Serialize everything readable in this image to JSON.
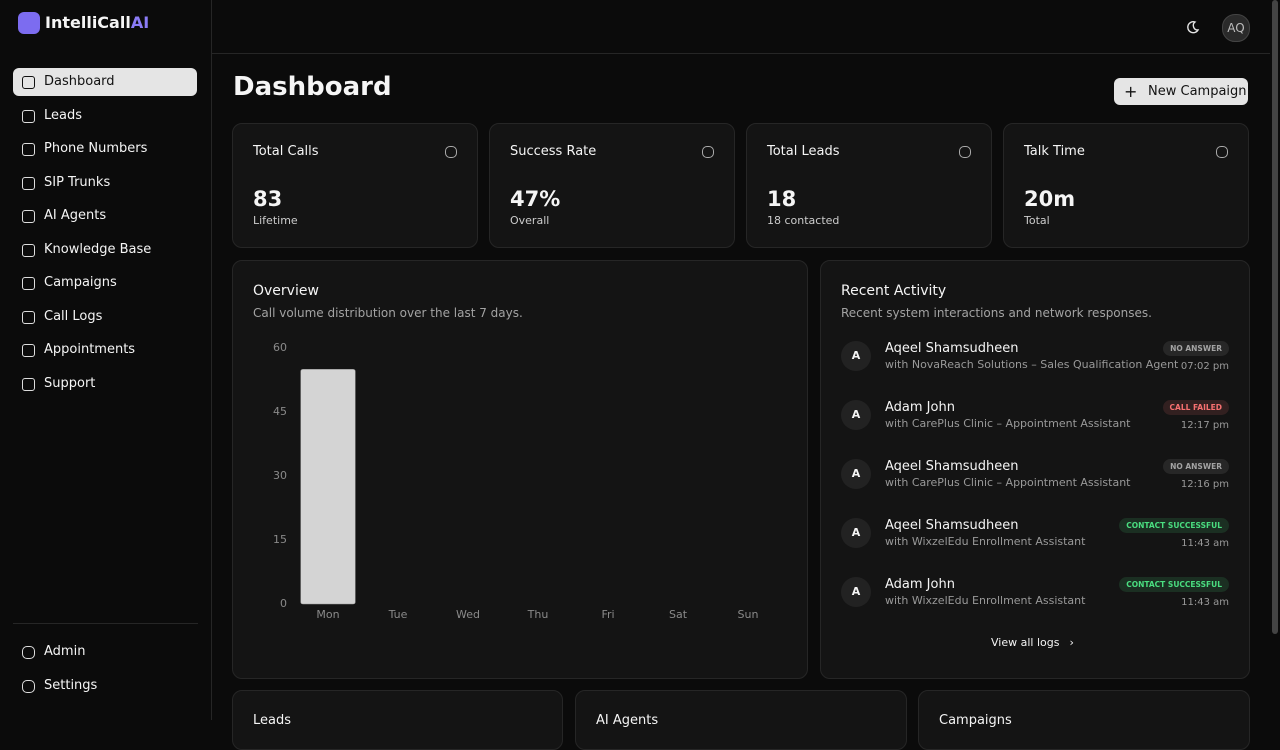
{
  "brand": {
    "name": "IntelliCall",
    "suffix": "AI"
  },
  "header": {
    "avatar": "AQ"
  },
  "nav": {
    "items": [
      "Dashboard",
      "Leads",
      "Phone Numbers",
      "SIP Trunks",
      "AI Agents",
      "Knowledge Base",
      "Campaigns",
      "Call Logs",
      "Appointments",
      "Support"
    ],
    "bottom": [
      "Admin",
      "Settings"
    ]
  },
  "page": {
    "title": "Dashboard",
    "action": "New Campaign"
  },
  "stats": [
    {
      "label": "Total Calls",
      "value": "83",
      "note": "Lifetime"
    },
    {
      "label": "Success Rate",
      "value": "47%",
      "note": "Overall"
    },
    {
      "label": "Total Leads",
      "value": "18",
      "note": "18 contacted"
    },
    {
      "label": "Talk Time",
      "value": "20m",
      "note": "Total"
    }
  ],
  "chart_data": {
    "type": "bar",
    "title": "Overview",
    "subtitle": "Call volume distribution over the last 7 days.",
    "categories": [
      "Mon",
      "Tue",
      "Wed",
      "Thu",
      "Fri",
      "Sat",
      "Sun"
    ],
    "values": [
      55,
      0,
      0,
      0,
      0,
      0,
      0
    ],
    "color": "#d4d4d4",
    "ylim": [
      0,
      60
    ],
    "yticks": [
      0,
      15,
      30,
      45,
      60
    ],
    "grid": false
  },
  "activity": {
    "title": "Recent Activity",
    "subtitle": "Recent system interactions and network responses.",
    "items": [
      {
        "initial": "A",
        "name": "Aqeel Shamsudheen",
        "detail": "with NovaReach Solutions – Sales Qualification Agent",
        "status": "NO ANSWER",
        "status_color": "#a3a3a3",
        "time": "07:02 pm"
      },
      {
        "initial": "A",
        "name": "Adam John",
        "detail": "with CarePlus Clinic – Appointment Assistant",
        "status": "CALL FAILED",
        "status_color": "#f87171",
        "time": "12:17 pm"
      },
      {
        "initial": "A",
        "name": "Aqeel Shamsudheen",
        "detail": "with CarePlus Clinic – Appointment Assistant",
        "status": "NO ANSWER",
        "status_color": "#a3a3a3",
        "time": "12:16 pm"
      },
      {
        "initial": "A",
        "name": "Aqeel Shamsudheen",
        "detail": "with WixzelEdu Enrollment Assistant",
        "status": "CONTACT SUCCESSFUL",
        "status_color": "#4ade80",
        "time": "11:43 am"
      },
      {
        "initial": "A",
        "name": "Adam John",
        "detail": "with WixzelEdu Enrollment Assistant",
        "status": "CONTACT SUCCESSFUL",
        "status_color": "#4ade80",
        "time": "11:43 am"
      }
    ],
    "link": "View all logs"
  },
  "bottom_cards": [
    "Leads",
    "AI Agents",
    "Campaigns"
  ]
}
